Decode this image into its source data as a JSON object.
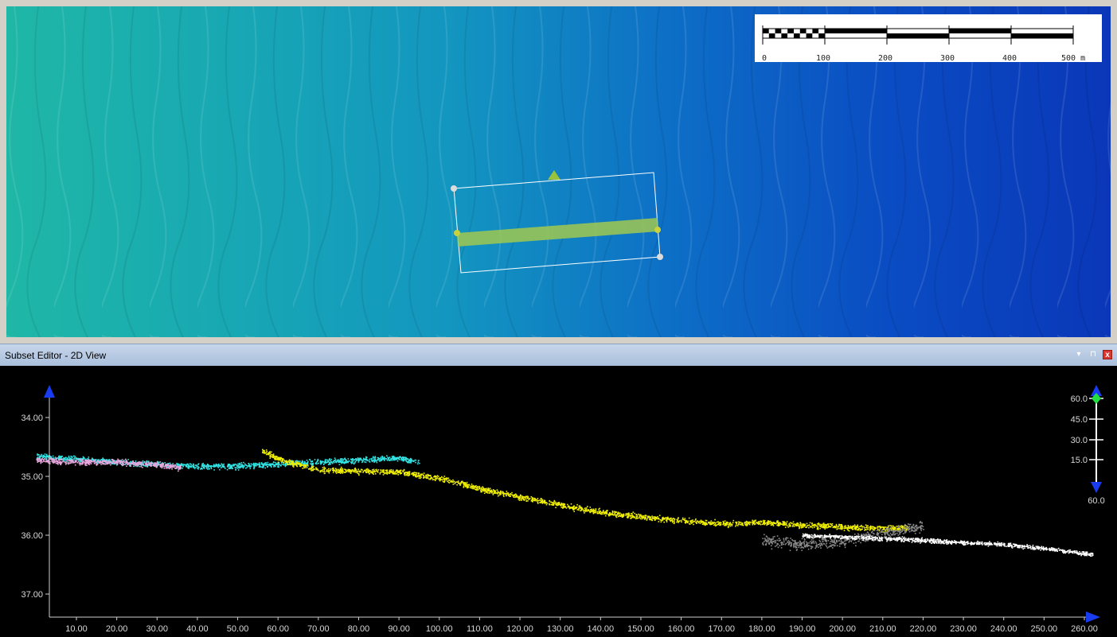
{
  "scale_bar": {
    "labels": [
      "0",
      "100",
      "200",
      "300",
      "400",
      "500 m"
    ]
  },
  "panel": {
    "title": "Subset Editor - 2D View",
    "controls": {
      "dropdown_icon": "chevron-down-icon",
      "pin_icon": "pin-icon",
      "close_icon": "close-icon",
      "close_glyph": "x"
    }
  },
  "colors": {
    "cyan": "#32e6e6",
    "pink": "#e8a6dc",
    "yellow": "#f0f000",
    "gray": "#8a8a8a",
    "white": "#ffffff",
    "selection_band": "#a0c850",
    "axis_arrow": "#1a3cf0",
    "view_handle": "#22e040"
  },
  "chart_data": {
    "type": "scatter",
    "xlabel": "",
    "ylabel": "",
    "x_ticks": [
      "10.00",
      "20.00",
      "30.00",
      "40.00",
      "50.00",
      "60.00",
      "70.00",
      "80.00",
      "90.00",
      "100.00",
      "110.00",
      "120.00",
      "130.00",
      "140.00",
      "150.00",
      "160.00",
      "170.00",
      "180.00",
      "190.00",
      "200.00",
      "210.00",
      "220.00",
      "230.00",
      "240.00",
      "250.00",
      "260.00"
    ],
    "y_ticks": [
      "34.00",
      "35.00",
      "36.00",
      "37.00"
    ],
    "y_inverted": true,
    "xlim": [
      0,
      262
    ],
    "ylim": [
      33.4,
      37.4
    ],
    "series": [
      {
        "color_key": "cyan",
        "x": [
          0,
          20,
          40,
          50,
          60,
          70,
          80,
          90,
          95
        ],
        "y": [
          34.65,
          34.75,
          34.82,
          34.82,
          34.78,
          34.75,
          34.72,
          34.68,
          34.75
        ]
      },
      {
        "color_key": "pink",
        "x": [
          0,
          10,
          20,
          30,
          36
        ],
        "y": [
          34.72,
          34.75,
          34.75,
          34.8,
          34.85
        ]
      },
      {
        "color_key": "yellow",
        "x": [
          56,
          60,
          70,
          80,
          90,
          100,
          110,
          120,
          130,
          140,
          150,
          160,
          170,
          180,
          190,
          200,
          210,
          216
        ],
        "y": [
          34.55,
          34.7,
          34.88,
          34.9,
          34.92,
          35.02,
          35.2,
          35.35,
          35.48,
          35.6,
          35.68,
          35.75,
          35.8,
          35.78,
          35.82,
          35.85,
          35.88,
          35.86
        ]
      },
      {
        "color_key": "gray",
        "x": [
          180,
          190,
          200,
          210,
          220
        ],
        "y": [
          36.08,
          36.15,
          36.1,
          35.95,
          35.85
        ]
      },
      {
        "color_key": "white",
        "x": [
          190,
          200,
          210,
          220,
          230,
          240,
          250,
          262
        ],
        "y": [
          36.0,
          36.02,
          36.05,
          36.08,
          36.12,
          36.15,
          36.22,
          36.32
        ]
      }
    ]
  },
  "view_slider": {
    "top_label": "60.0",
    "labels": [
      "60.0",
      "45.0",
      "30.0",
      "15.0"
    ],
    "bottom_label": "60.0"
  }
}
